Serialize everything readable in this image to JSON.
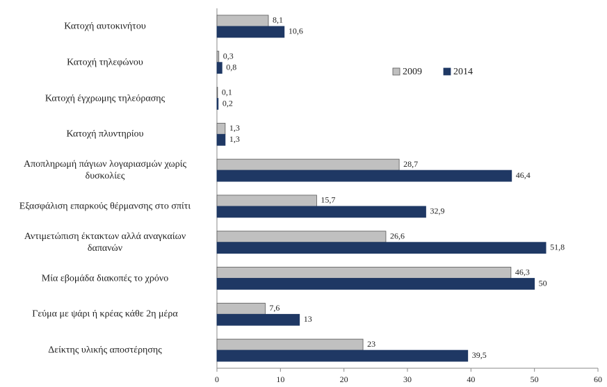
{
  "chart_data": {
    "type": "barh",
    "categories": [
      "Κατοχή αυτοκινήτου",
      "Κατοχή τηλεφώνου",
      "Κατοχή έγχρωμης τηλεόρασης",
      "Κατοχή πλυντηρίου",
      "Αποπληρωμή πάγιων λογαριασμών χωρίς\nδυσκολίες",
      "Εξασφάλιση επαρκούς θέρμανσης στο σπίτι",
      "Αντιμετώπιση έκτακτων αλλά αναγκαίων\nδαπανών",
      "Μία εβομάδα διακοπές το χρόνο",
      "Γεύμα με ψάρι ή κρέας κάθε 2η μέρα",
      "Δείκτης υλικής αποστέρησης"
    ],
    "series": [
      {
        "name": "2009",
        "color": "#c0c0c0",
        "values": [
          8.1,
          0.3,
          0.1,
          1.3,
          28.7,
          15.7,
          26.6,
          46.3,
          7.6,
          23
        ],
        "value_labels": [
          "8,1",
          "0,3",
          "0,1",
          "1,3",
          "28,7",
          "15,7",
          "26,6",
          "46,3",
          "7,6",
          "23"
        ]
      },
      {
        "name": "2014",
        "color": "#1f3864",
        "values": [
          10.6,
          0.8,
          0.2,
          1.3,
          46.4,
          32.9,
          51.8,
          50,
          13,
          39.5
        ],
        "value_labels": [
          "10,6",
          "0,8",
          "0,2",
          "1,3",
          "46,4",
          "32,9",
          "51,8",
          "50",
          "13",
          "39,5"
        ]
      }
    ],
    "xlim": [
      0,
      60
    ],
    "xticks": [
      0,
      10,
      20,
      30,
      40,
      50,
      60
    ],
    "grid": false,
    "legend": "top-right"
  }
}
